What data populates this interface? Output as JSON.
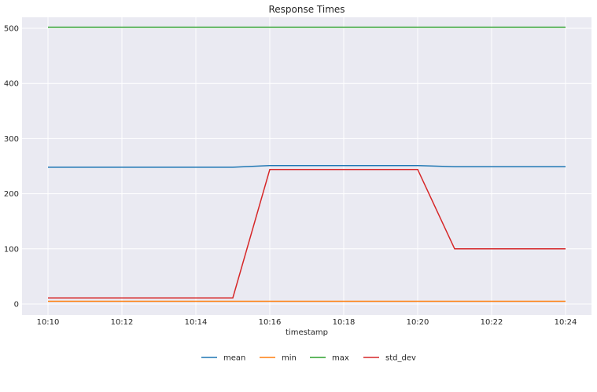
{
  "chart_data": {
    "type": "line",
    "title": "Response Times",
    "xlabel": "timestamp",
    "ylabel": "",
    "x": [
      "10:10",
      "10:11",
      "10:12",
      "10:13",
      "10:14",
      "10:15",
      "10:16",
      "10:17",
      "10:18",
      "10:19",
      "10:20",
      "10:21",
      "10:22",
      "10:23",
      "10:24"
    ],
    "x_tick_labels": [
      "10:10",
      "10:12",
      "10:14",
      "10:16",
      "10:18",
      "10:20",
      "10:22",
      "10:24"
    ],
    "y_ticks": [
      0,
      100,
      200,
      300,
      400,
      500
    ],
    "ylim": [
      -20,
      520
    ],
    "grid": true,
    "legend_placement": "bottom-center",
    "series": [
      {
        "name": "mean",
        "color": "#1f77b4",
        "values": [
          248,
          248,
          248,
          248,
          248,
          248,
          251,
          251,
          251,
          251,
          251,
          249,
          249,
          249,
          249
        ]
      },
      {
        "name": "min",
        "color": "#ff7f0e",
        "values": [
          5,
          5,
          5,
          5,
          5,
          5,
          5,
          5,
          5,
          5,
          5,
          5,
          5,
          5,
          5
        ]
      },
      {
        "name": "max",
        "color": "#2ca02c",
        "values": [
          502,
          502,
          502,
          502,
          502,
          502,
          502,
          502,
          502,
          502,
          502,
          502,
          502,
          502,
          502
        ]
      },
      {
        "name": "std_dev",
        "color": "#d62728",
        "values": [
          11,
          11,
          11,
          11,
          11,
          11,
          244,
          244,
          244,
          244,
          244,
          100,
          100,
          100,
          100
        ]
      }
    ]
  }
}
